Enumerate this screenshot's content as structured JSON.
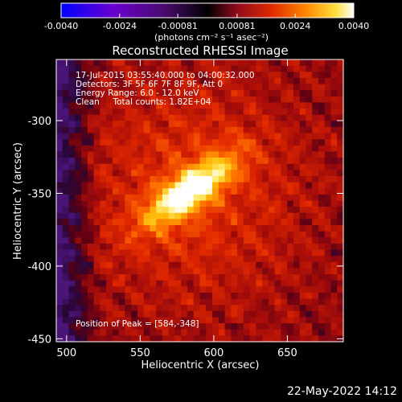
{
  "chart_data": {
    "type": "heatmap",
    "title": "Reconstructed RHESSI Image",
    "xlabel": "Heliocentric X (arcsec)",
    "ylabel": "Heliocentric Y (arcsec)",
    "xlim": [
      493,
      688
    ],
    "ylim": [
      -452,
      -258
    ],
    "x_ticks": [
      "500",
      "550",
      "600",
      "650"
    ],
    "x_tick_values": [
      500,
      550,
      600,
      650
    ],
    "y_ticks": [
      "-450",
      "-400",
      "-350",
      "-300"
    ],
    "y_tick_values": [
      -450,
      -400,
      -350,
      -300
    ],
    "colorbar": {
      "range": [
        -0.004,
        0.004
      ],
      "ticks": [
        "-0.0040",
        "-0.0024",
        "-0.00081",
        "0.00081",
        "0.0024",
        "0.0040"
      ],
      "tick_values": [
        -0.004,
        -0.0024,
        -0.00081,
        0.00081,
        0.0024,
        0.004
      ],
      "label": "(photons cm⁻² s⁻¹ asec⁻²)",
      "colors": [
        "#0000ff",
        "#7a00c8",
        "#5b0d83",
        "#000000",
        "#8f0a1e",
        "#e02a00",
        "#ff7a00",
        "#ffd200",
        "#ffffff"
      ]
    },
    "peak_position": [
      584,
      -348
    ],
    "annotations": [
      "17-Jul-2015 03:55:40.000 to 04:00:32.000",
      "Detectors: 3F 5F 6F 7F 8F 9F, Att 0",
      "Energy Range: 6.0 - 12.0 keV",
      "Clean     Total counts: 1.82E+04",
      "Position of Peak = [584,-348]"
    ]
  },
  "footer": {
    "timestamp": "22-May-2022 14:12"
  }
}
